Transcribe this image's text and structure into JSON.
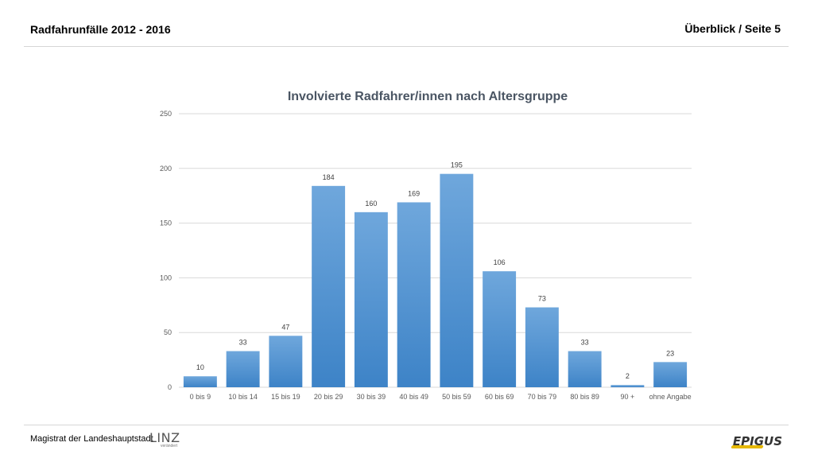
{
  "header": {
    "title": "Radfahrunfälle 2012 - 2016",
    "page": "Überblick / Seite 5"
  },
  "footer": {
    "org_text": "Magistrat der Landeshauptstadt",
    "logo_linz": "LINZ",
    "logo_linz_sub": "verändert",
    "logo_epigus": "EPIGUS"
  },
  "colors": {
    "bar_top": "#6fa7dc",
    "bar_bottom": "#3d83c7",
    "grid": "#d9d9d9"
  },
  "chart_data": {
    "type": "bar",
    "title": "Involvierte Radfahrer/innen nach Altersgruppe",
    "xlabel": "",
    "ylabel": "",
    "ylim": [
      0,
      250
    ],
    "yticks": [
      0,
      50,
      100,
      150,
      200,
      250
    ],
    "grid": true,
    "categories": [
      "0 bis 9",
      "10 bis 14",
      "15 bis 19",
      "20 bis 29",
      "30 bis 39",
      "40 bis 49",
      "50 bis 59",
      "60 bis 69",
      "70 bis 79",
      "80 bis 89",
      "90 +",
      "ohne Angabe"
    ],
    "values": [
      10,
      33,
      47,
      184,
      160,
      169,
      195,
      106,
      73,
      33,
      2,
      23
    ]
  }
}
